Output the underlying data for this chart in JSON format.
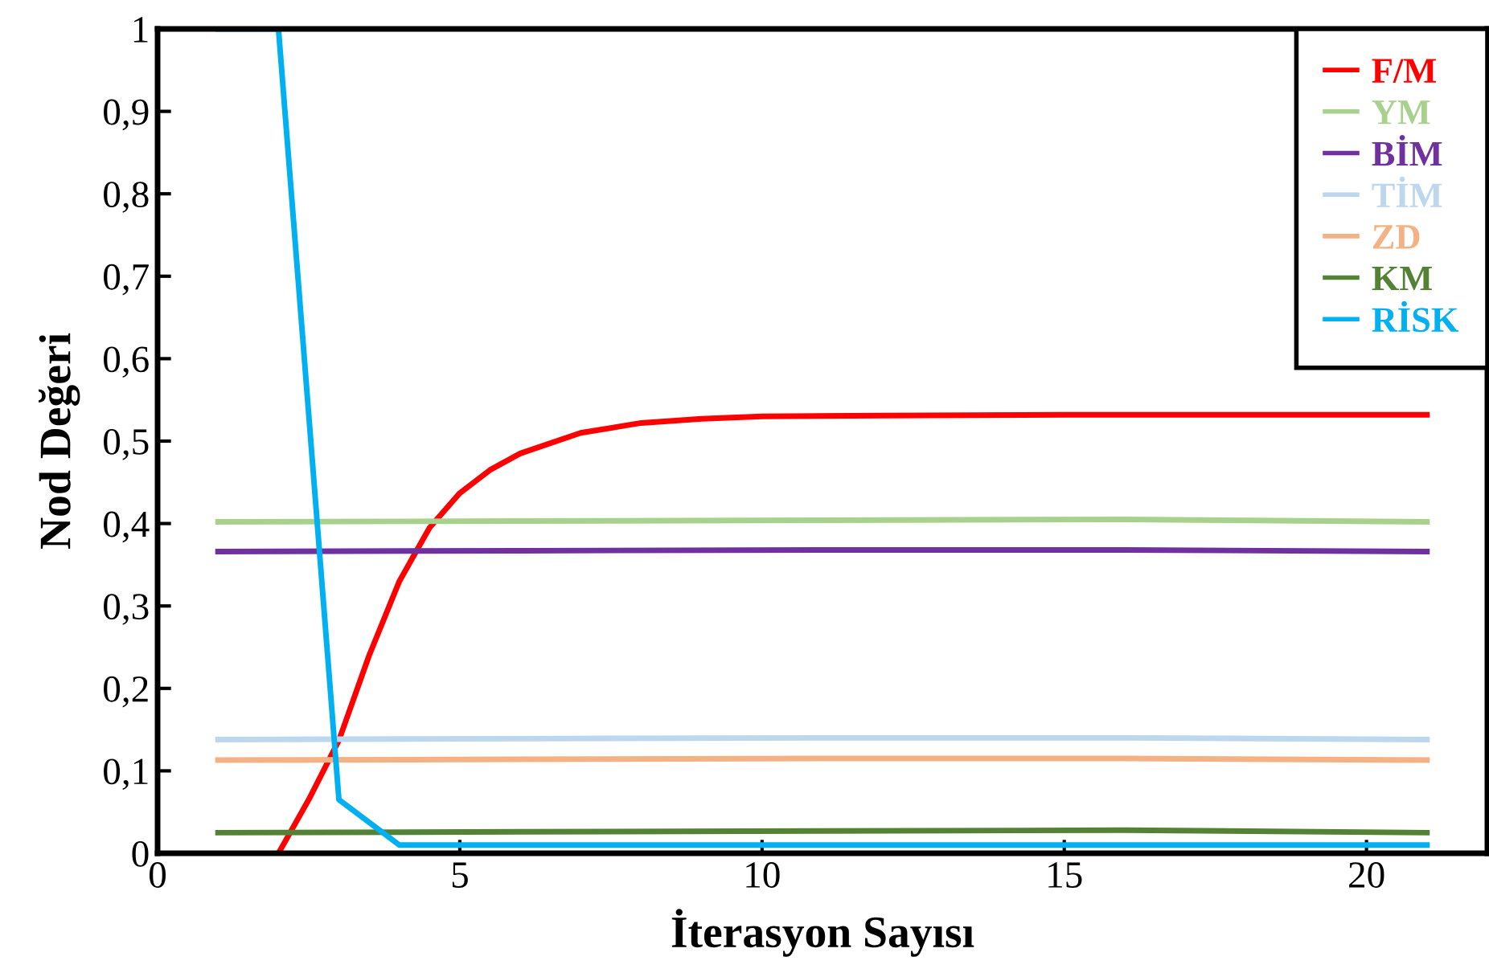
{
  "chart_data": {
    "type": "line",
    "xlabel": "İterasyon Sayısı",
    "ylabel": "Nod Değeri",
    "xlim": [
      0,
      22
    ],
    "ylim": [
      0,
      1
    ],
    "xticks": [
      0,
      5,
      10,
      15,
      20
    ],
    "yticks": [
      0,
      {
        "value": 0.1,
        "label": "0,1"
      },
      {
        "value": 0.2,
        "label": "0,2"
      },
      {
        "value": 0.3,
        "label": "0,3"
      },
      {
        "value": 0.4,
        "label": "0,4"
      },
      {
        "value": 0.5,
        "label": "0,5"
      },
      {
        "value": 0.6,
        "label": "0,6"
      },
      {
        "value": 0.7,
        "label": "0,7"
      },
      {
        "value": 0.8,
        "label": "0,8"
      },
      {
        "value": 0.9,
        "label": "0,9"
      },
      1
    ],
    "grid": false,
    "legend": "top right",
    "marker": "none",
    "line_style": "solid",
    "series": [
      {
        "name": "F/M",
        "color": "#ff0000",
        "x": [
          2,
          2.5,
          3,
          3.5,
          4,
          4.5,
          5,
          5.5,
          6,
          7,
          8,
          9,
          10,
          12,
          15,
          18,
          21
        ],
        "values": [
          0,
          0.065,
          0.137,
          0.24,
          0.33,
          0.395,
          0.437,
          0.465,
          0.485,
          0.51,
          0.522,
          0.527,
          0.53,
          0.531,
          0.532,
          0.532,
          0.532
        ]
      },
      {
        "name": "YM",
        "color": "#a9d18e",
        "x": [
          1,
          6,
          11,
          16,
          21
        ],
        "values": [
          0.402,
          0.403,
          0.404,
          0.405,
          0.402
        ]
      },
      {
        "name": "BİM",
        "color": "#7030a0",
        "x": [
          1,
          6,
          11,
          16,
          21
        ],
        "values": [
          0.366,
          0.367,
          0.368,
          0.368,
          0.366
        ]
      },
      {
        "name": "TİM",
        "color": "#bdd7ee",
        "x": [
          1,
          6,
          11,
          16,
          21
        ],
        "values": [
          0.138,
          0.139,
          0.14,
          0.14,
          0.138
        ]
      },
      {
        "name": "ZD",
        "color": "#f4b183",
        "x": [
          1,
          6,
          11,
          16,
          21
        ],
        "values": [
          0.113,
          0.114,
          0.115,
          0.115,
          0.113
        ]
      },
      {
        "name": "KM",
        "color": "#548235",
        "x": [
          1,
          6,
          11,
          16,
          21
        ],
        "values": [
          0.025,
          0.026,
          0.027,
          0.028,
          0.025
        ]
      },
      {
        "name": "RİSK",
        "color": "#00b0f0",
        "x": [
          1,
          2,
          3,
          4,
          10,
          15,
          21
        ],
        "values": [
          1,
          1,
          0.065,
          0.01,
          0.01,
          0.01,
          0.01
        ]
      }
    ]
  }
}
